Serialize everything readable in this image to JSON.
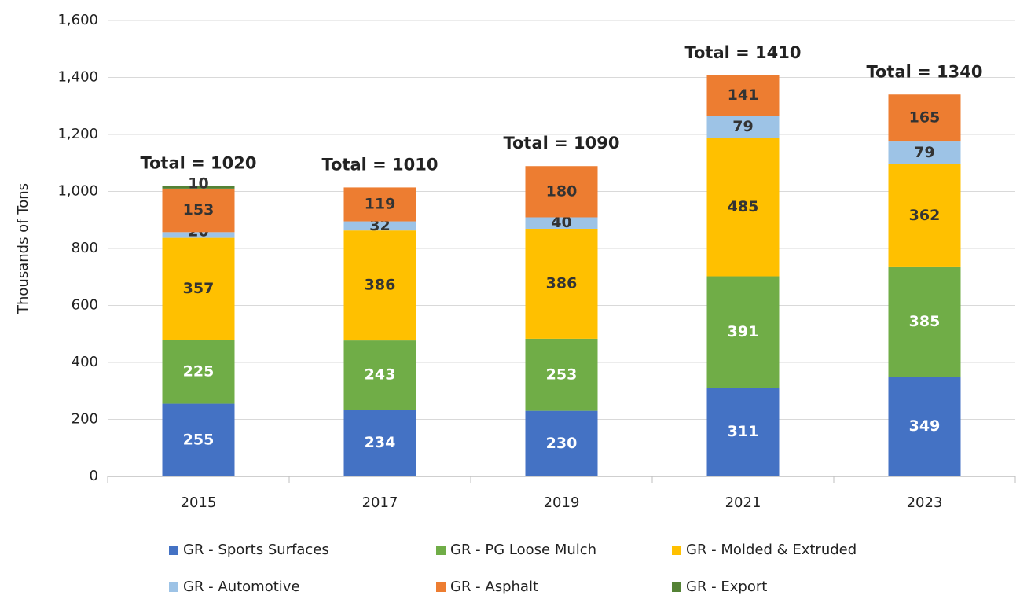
{
  "chart_data": {
    "type": "stacked_bar",
    "categories": [
      "2015",
      "2017",
      "2019",
      "2021",
      "2023"
    ],
    "y_label": "Thousands of Tons",
    "ylim": [
      0,
      1600
    ],
    "yticks": [
      0,
      200,
      400,
      600,
      800,
      {
        "value": 1000,
        "label": "1,000"
      },
      {
        "value": 1200,
        "label": "1,200"
      },
      {
        "value": 1400,
        "label": "1,400"
      },
      {
        "value": 1600,
        "label": "1,600"
      }
    ],
    "grid": true,
    "series": [
      {
        "name": "GR - Sports Surfaces",
        "color": "#4472c4",
        "label_color": "#ffffff",
        "values": [
          255,
          234,
          230,
          311,
          349
        ]
      },
      {
        "name": "GR - PG Loose Mulch",
        "color": "#70ad47",
        "label_color": "#ffffff",
        "values": [
          225,
          243,
          253,
          391,
          385
        ]
      },
      {
        "name": "GR - Molded & Extruded",
        "color": "#ffc000",
        "label_color": "#333333",
        "values": [
          357,
          386,
          386,
          485,
          362
        ]
      },
      {
        "name": "GR - Automotive",
        "color": "#9dc3e6",
        "label_color": "#333333",
        "values": [
          20,
          32,
          40,
          79,
          79
        ]
      },
      {
        "name": "GR - Asphalt",
        "color": "#ed7d31",
        "label_color": "#333333",
        "values": [
          153,
          119,
          180,
          141,
          165
        ]
      },
      {
        "name": "GR - Export",
        "color": "#548235",
        "label_color": "#333333",
        "values": [
          10,
          null,
          null,
          null,
          null
        ]
      }
    ],
    "annotations": [
      "Total = 1020",
      "Total = 1010",
      "Total = 1090",
      "Total = 1410",
      "Total = 1340"
    ]
  }
}
